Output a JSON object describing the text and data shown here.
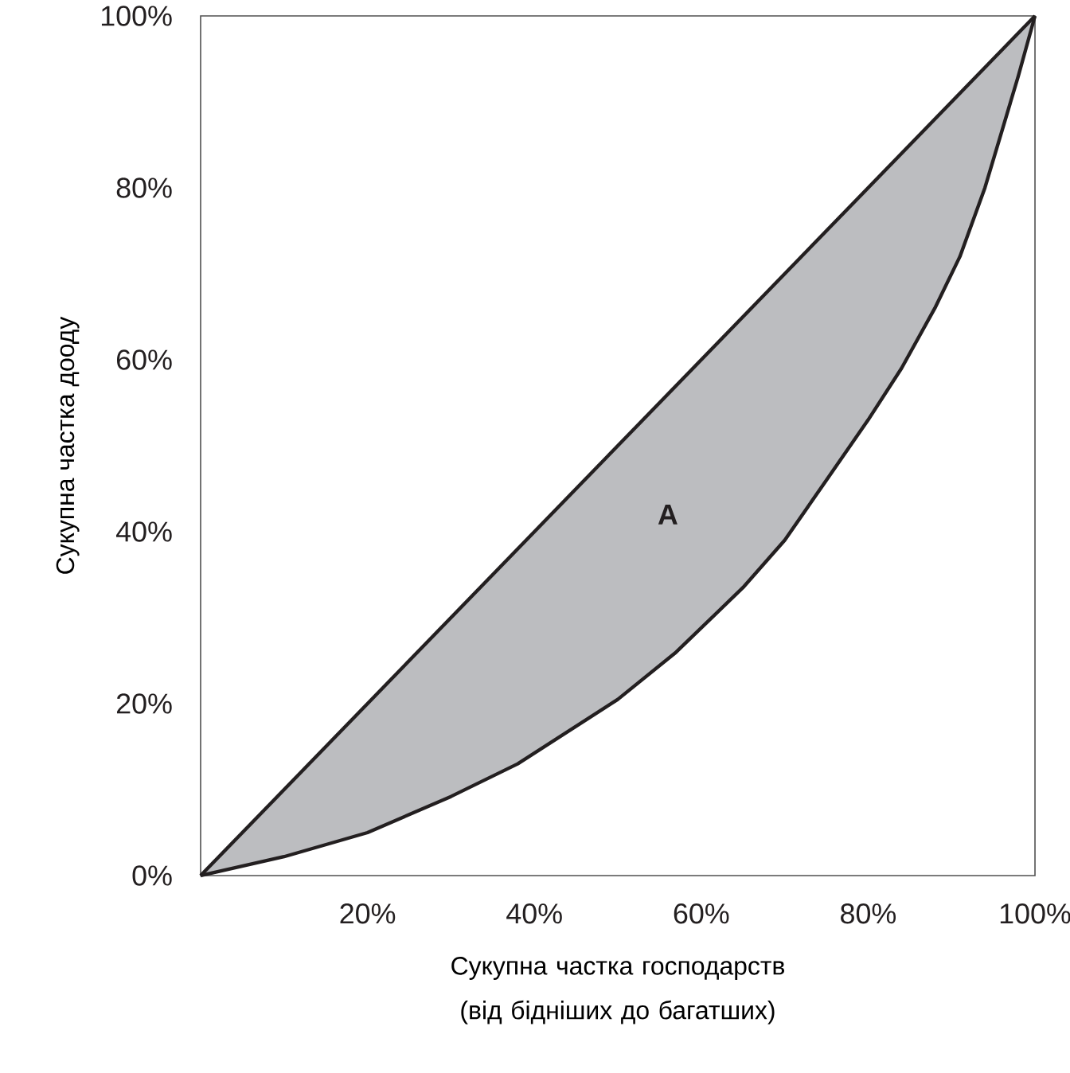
{
  "chart_data": {
    "type": "line",
    "xlabel": "Сукупна частка господарств (від бідніших до багатших)",
    "ylabel": "Сукупна частка дооду",
    "xlim": [
      0,
      100
    ],
    "ylim": [
      0,
      100
    ],
    "xticks": [
      {
        "value": 20,
        "label": "20%"
      },
      {
        "value": 40,
        "label": "40%"
      },
      {
        "value": 60,
        "label": "60%"
      },
      {
        "value": 80,
        "label": "80%"
      },
      {
        "value": 100,
        "label": "100%"
      }
    ],
    "yticks": [
      {
        "value": 0,
        "label": "0%"
      },
      {
        "value": 20,
        "label": "20%"
      },
      {
        "value": 40,
        "label": "40%"
      },
      {
        "value": 60,
        "label": "60%"
      },
      {
        "value": 80,
        "label": "80%"
      },
      {
        "value": 100,
        "label": "100%"
      }
    ],
    "series": [
      {
        "color": "#231f20",
        "x": [
          0,
          100
        ],
        "values": [
          0,
          100
        ]
      },
      {
        "color": "#231f20",
        "x": [
          0,
          10,
          20,
          30,
          38,
          50,
          57,
          65,
          70,
          75,
          80,
          84,
          88,
          91,
          94,
          96,
          98,
          100
        ],
        "values": [
          0,
          2.2,
          5,
          9.2,
          13,
          20.5,
          26,
          33.5,
          39,
          46,
          53,
          59,
          66,
          72,
          80,
          86.5,
          93,
          100
        ],
        "lower": [
          0,
          2.2,
          5,
          9.2,
          13,
          20.5,
          26,
          33.5,
          39,
          46,
          53,
          59,
          66,
          72,
          80,
          86.5,
          93,
          100
        ],
        "upper": [
          0,
          10,
          20,
          30,
          38,
          50,
          57,
          65,
          70,
          75,
          80,
          84,
          88,
          91,
          94,
          96,
          98,
          100
        ]
      }
    ],
    "annotations": [
      "A"
    ]
  }
}
